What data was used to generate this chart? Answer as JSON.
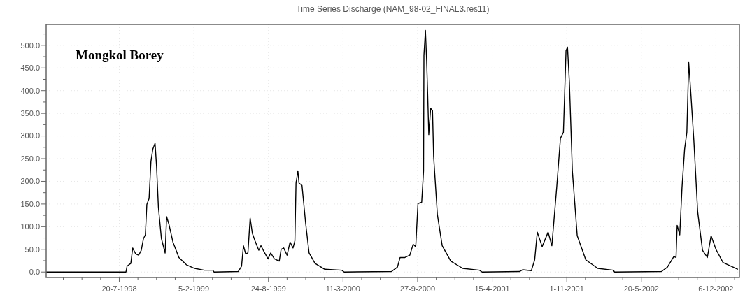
{
  "chart_data": {
    "type": "line",
    "title": "Time Series Discharge (NAM_98-02_FINAL3.res11)",
    "annotations": [
      "Mongkol Borey"
    ],
    "grid": true,
    "marker": "none",
    "line_style": "solid",
    "xlim": [
      "1998-01-05",
      "2003-02-07"
    ],
    "ylim": [
      -12,
      546
    ],
    "xticks": [
      {
        "value": "1998-02-20",
        "label": null
      },
      {
        "value": "1998-04-11",
        "label": null
      },
      {
        "value": "1998-05-31",
        "label": null
      },
      {
        "value": "1998-07-20",
        "label": "20-7-1998"
      },
      {
        "value": "1998-09-08",
        "label": null
      },
      {
        "value": "1998-10-28",
        "label": null
      },
      {
        "value": "1998-12-17",
        "label": null
      },
      {
        "value": "1999-02-05",
        "label": "5-2-1999"
      },
      {
        "value": "1999-03-27",
        "label": null
      },
      {
        "value": "1999-05-16",
        "label": null
      },
      {
        "value": "1999-07-05",
        "label": null
      },
      {
        "value": "1999-08-24",
        "label": "24-8-1999"
      },
      {
        "value": "1999-10-13",
        "label": null
      },
      {
        "value": "1999-12-02",
        "label": null
      },
      {
        "value": "2000-01-21",
        "label": null
      },
      {
        "value": "2000-03-11",
        "label": "11-3-2000"
      },
      {
        "value": "2000-04-30",
        "label": null
      },
      {
        "value": "2000-06-19",
        "label": null
      },
      {
        "value": "2000-08-08",
        "label": null
      },
      {
        "value": "2000-09-27",
        "label": "27-9-2000"
      },
      {
        "value": "2000-11-16",
        "label": null
      },
      {
        "value": "2001-01-05",
        "label": null
      },
      {
        "value": "2001-02-24",
        "label": null
      },
      {
        "value": "2001-04-15",
        "label": "15-4-2001"
      },
      {
        "value": "2001-06-04",
        "label": null
      },
      {
        "value": "2001-07-24",
        "label": null
      },
      {
        "value": "2001-09-12",
        "label": null
      },
      {
        "value": "2001-11-01",
        "label": "1-11-2001"
      },
      {
        "value": "2001-12-21",
        "label": null
      },
      {
        "value": "2002-02-09",
        "label": null
      },
      {
        "value": "2002-03-31",
        "label": null
      },
      {
        "value": "2002-05-20",
        "label": "20-5-2002"
      },
      {
        "value": "2002-07-09",
        "label": null
      },
      {
        "value": "2002-08-28",
        "label": null
      },
      {
        "value": "2002-10-17",
        "label": null
      },
      {
        "value": "2002-12-06",
        "label": "6-12-2002"
      },
      {
        "value": "2003-01-25",
        "label": null
      }
    ],
    "yticks": [
      {
        "value": 0,
        "label": "0.0"
      },
      {
        "value": 25,
        "label": null
      },
      {
        "value": 50,
        "label": "50.0"
      },
      {
        "value": 75,
        "label": null
      },
      {
        "value": 100,
        "label": "100.0"
      },
      {
        "value": 125,
        "label": null
      },
      {
        "value": 150,
        "label": "150.0"
      },
      {
        "value": 175,
        "label": null
      },
      {
        "value": 200,
        "label": "200.0"
      },
      {
        "value": 225,
        "label": null
      },
      {
        "value": 250,
        "label": "250.0"
      },
      {
        "value": 275,
        "label": null
      },
      {
        "value": 300,
        "label": "300.0"
      },
      {
        "value": 325,
        "label": null
      },
      {
        "value": 350,
        "label": "350.0"
      },
      {
        "value": 375,
        "label": null
      },
      {
        "value": 400,
        "label": "400.0"
      },
      {
        "value": 425,
        "label": null
      },
      {
        "value": 450,
        "label": "450.0"
      },
      {
        "value": 475,
        "label": null
      },
      {
        "value": 500,
        "label": "500.0"
      },
      {
        "value": 525,
        "label": null
      }
    ],
    "series": [
      {
        "color": "#000000",
        "x": [
          "1998-01-05",
          "1998-08-07",
          "1998-08-10",
          "1998-08-20",
          "1998-08-25",
          "1998-09-02",
          "1998-09-10",
          "1998-09-17",
          "1998-09-23",
          "1998-09-28",
          "1998-10-02",
          "1998-10-08",
          "1998-10-13",
          "1998-10-18",
          "1998-10-24",
          "1998-10-28",
          "1998-11-02",
          "1998-11-10",
          "1998-11-20",
          "1998-11-24",
          "1998-11-30",
          "1998-12-11",
          "1998-12-27",
          "1999-01-16",
          "1999-02-07",
          "1999-03-05",
          "1999-03-28",
          "1999-03-31",
          "1999-06-04",
          "1999-06-13",
          "1999-06-18",
          "1999-06-24",
          "1999-06-30",
          "1999-07-06",
          "1999-07-12",
          "1999-07-19",
          "1999-07-29",
          "1999-08-04",
          "1999-08-14",
          "1999-08-23",
          "1999-08-30",
          "1999-09-09",
          "1999-09-22",
          "1999-09-27",
          "1999-10-04",
          "1999-10-13",
          "1999-10-21",
          "1999-10-29",
          "1999-11-03",
          "1999-11-06",
          "1999-11-11",
          "1999-11-14",
          "1999-11-22",
          "1999-12-02",
          "1999-12-11",
          "1999-12-27",
          "2000-01-22",
          "2000-03-08",
          "2000-03-14",
          "2000-07-19",
          "2000-08-04",
          "2000-08-11",
          "2000-08-24",
          "2000-09-06",
          "2000-09-15",
          "2000-09-22",
          "2000-09-28",
          "2000-10-08",
          "2000-10-13",
          "2000-10-14",
          "2000-10-18",
          "2000-10-21",
          "2000-10-24",
          "2000-10-27",
          "2000-11-01",
          "2000-11-06",
          "2000-11-09",
          "2000-11-19",
          "2000-12-02",
          "2000-12-25",
          "2001-01-26",
          "2001-03-12",
          "2001-03-19",
          "2001-06-27",
          "2001-07-06",
          "2001-07-29",
          "2001-08-07",
          "2001-08-14",
          "2001-08-27",
          "2001-09-12",
          "2001-09-22",
          "2001-10-05",
          "2001-10-15",
          "2001-10-23",
          "2001-10-30",
          "2001-11-03",
          "2001-11-08",
          "2001-11-16",
          "2001-11-29",
          "2001-12-22",
          "2002-01-23",
          "2002-03-06",
          "2002-03-09",
          "2002-07-13",
          "2002-07-29",
          "2002-08-15",
          "2002-08-21",
          "2002-08-24",
          "2002-08-31",
          "2002-09-06",
          "2002-09-13",
          "2002-09-19",
          "2002-09-24",
          "2002-09-29",
          "2002-10-08",
          "2002-10-18",
          "2002-10-31",
          "2002-11-13",
          "2002-11-23",
          "2002-12-06",
          "2002-12-25",
          "2003-02-03"
        ],
        "values": [
          0,
          0,
          13,
          19,
          53,
          40,
          37,
          48,
          74,
          82,
          149,
          162,
          244,
          271,
          284,
          234,
          143,
          74,
          42,
          122,
          106,
          66,
          32,
          16,
          8,
          4,
          4,
          0,
          1,
          13,
          58,
          40,
          42,
          119,
          85,
          69,
          48,
          58,
          42,
          29,
          42,
          29,
          24,
          50,
          53,
          37,
          66,
          53,
          69,
          196,
          223,
          196,
          191,
          106,
          42,
          19,
          6,
          4,
          0,
          1,
          11,
          32,
          32,
          37,
          61,
          56,
          151,
          154,
          223,
          478,
          533,
          472,
          393,
          303,
          361,
          356,
          255,
          127,
          58,
          24,
          8,
          4,
          0,
          1,
          5,
          3,
          27,
          88,
          56,
          88,
          58,
          186,
          295,
          308,
          488,
          496,
          419,
          223,
          80,
          27,
          8,
          4,
          0,
          1,
          11,
          34,
          32,
          103,
          82,
          186,
          271,
          308,
          462,
          403,
          287,
          133,
          48,
          32,
          80,
          50,
          21,
          6
        ]
      }
    ]
  }
}
